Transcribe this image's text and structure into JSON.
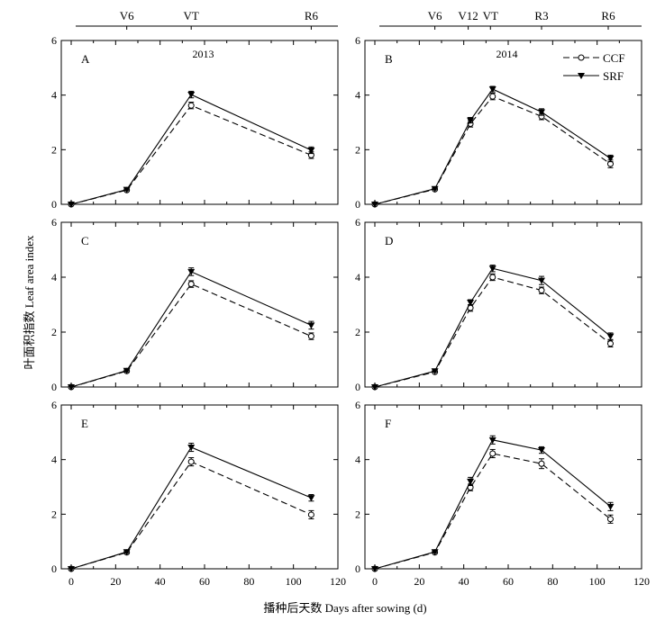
{
  "figure": {
    "ylabel": "叶面积指数 Leaf area index",
    "xlabel": "播种后天数 Days after sowing (d)"
  },
  "legend": [
    {
      "name": "CCF",
      "marker": "open-circle",
      "line": "dashed"
    },
    {
      "name": "SRF",
      "marker": "filled-triangle-down",
      "line": "solid"
    }
  ],
  "stages": {
    "left": [
      {
        "label": "V6",
        "day": 25
      },
      {
        "label": "VT",
        "day": 54
      },
      {
        "label": "R6",
        "day": 108
      }
    ],
    "right": [
      {
        "label": "V6",
        "day": 27
      },
      {
        "label": "V12",
        "day": 42
      },
      {
        "label": "VT",
        "day": 52
      },
      {
        "label": "R3",
        "day": 75
      },
      {
        "label": "R6",
        "day": 105
      }
    ]
  },
  "chart_data": [
    {
      "panel": "A",
      "type": "line",
      "year": "2013",
      "xlim": [
        0,
        120
      ],
      "ylim": [
        0,
        6
      ],
      "xticks": [
        "0",
        "20",
        "40",
        "60",
        "80",
        "100",
        "120"
      ],
      "yticks": [
        "0",
        "2",
        "4",
        "6"
      ],
      "x": [
        0,
        25,
        54,
        108
      ],
      "series": [
        {
          "name": "CCF",
          "values": [
            0,
            0.52,
            3.62,
            1.8
          ],
          "err": [
            0,
            0.04,
            0.12,
            0.12
          ]
        },
        {
          "name": "SRF",
          "values": [
            0,
            0.54,
            4.02,
            1.98
          ],
          "err": [
            0,
            0.04,
            0.12,
            0.12
          ]
        }
      ]
    },
    {
      "panel": "B",
      "type": "line",
      "year": "2014",
      "xlim": [
        0,
        120
      ],
      "ylim": [
        0,
        6
      ],
      "xticks": [
        "0",
        "20",
        "40",
        "60",
        "80",
        "100",
        "120"
      ],
      "yticks": [
        "0",
        "2",
        "4",
        "6"
      ],
      "x": [
        0,
        27,
        43,
        53,
        75,
        106
      ],
      "series": [
        {
          "name": "CCF",
          "values": [
            0,
            0.55,
            2.95,
            3.95,
            3.22,
            1.48
          ],
          "err": [
            0,
            0.04,
            0.12,
            0.12,
            0.12,
            0.14
          ]
        },
        {
          "name": "SRF",
          "values": [
            0,
            0.57,
            3.08,
            4.22,
            3.38,
            1.68
          ],
          "err": [
            0,
            0.04,
            0.1,
            0.1,
            0.12,
            0.12
          ]
        }
      ]
    },
    {
      "panel": "C",
      "type": "line",
      "year": "",
      "xlim": [
        0,
        120
      ],
      "ylim": [
        0,
        6
      ],
      "xticks": [
        "0",
        "20",
        "40",
        "60",
        "80",
        "100",
        "120"
      ],
      "yticks": [
        "0",
        "2",
        "4",
        "6"
      ],
      "x": [
        0,
        25,
        54,
        108
      ],
      "series": [
        {
          "name": "CCF",
          "values": [
            0,
            0.58,
            3.75,
            1.85
          ],
          "err": [
            0,
            0.05,
            0.12,
            0.12
          ]
        },
        {
          "name": "SRF",
          "values": [
            0,
            0.6,
            4.2,
            2.25
          ],
          "err": [
            0,
            0.05,
            0.14,
            0.14
          ]
        }
      ]
    },
    {
      "panel": "D",
      "type": "line",
      "year": "",
      "xlim": [
        0,
        120
      ],
      "ylim": [
        0,
        6
      ],
      "xticks": [
        "0",
        "20",
        "40",
        "60",
        "80",
        "100",
        "120"
      ],
      "yticks": [
        "0",
        "2",
        "4",
        "6"
      ],
      "x": [
        0,
        27,
        43,
        53,
        75,
        106
      ],
      "series": [
        {
          "name": "CCF",
          "values": [
            0,
            0.55,
            2.88,
            4.0,
            3.52,
            1.58
          ],
          "err": [
            0,
            0.04,
            0.12,
            0.12,
            0.12,
            0.12
          ]
        },
        {
          "name": "SRF",
          "values": [
            0,
            0.58,
            3.08,
            4.32,
            3.88,
            1.85
          ],
          "err": [
            0,
            0.04,
            0.1,
            0.12,
            0.15,
            0.12
          ]
        }
      ]
    },
    {
      "panel": "E",
      "type": "line",
      "year": "",
      "xlim": [
        0,
        120
      ],
      "ylim": [
        0,
        6
      ],
      "xticks": [
        "0",
        "20",
        "40",
        "60",
        "80",
        "100",
        "120"
      ],
      "yticks": [
        "0",
        "2",
        "4",
        "6"
      ],
      "x": [
        0,
        25,
        54,
        108
      ],
      "series": [
        {
          "name": "CCF",
          "values": [
            0,
            0.6,
            3.92,
            1.98
          ],
          "err": [
            0,
            0.05,
            0.15,
            0.15
          ]
        },
        {
          "name": "SRF",
          "values": [
            0,
            0.62,
            4.45,
            2.6
          ],
          "err": [
            0,
            0.05,
            0.15,
            0.12
          ]
        }
      ]
    },
    {
      "panel": "F",
      "type": "line",
      "year": "",
      "xlim": [
        0,
        120
      ],
      "ylim": [
        0,
        6
      ],
      "xticks": [
        "0",
        "20",
        "40",
        "60",
        "80",
        "100",
        "120"
      ],
      "yticks": [
        "0",
        "2",
        "4",
        "6"
      ],
      "x": [
        0,
        27,
        43,
        53,
        75,
        106
      ],
      "series": [
        {
          "name": "CCF",
          "values": [
            0,
            0.6,
            2.98,
            4.22,
            3.85,
            1.82
          ],
          "err": [
            0,
            0.04,
            0.12,
            0.15,
            0.18,
            0.15
          ]
        },
        {
          "name": "SRF",
          "values": [
            0,
            0.62,
            3.2,
            4.72,
            4.35,
            2.28
          ],
          "err": [
            0,
            0.04,
            0.15,
            0.15,
            0.12,
            0.15
          ]
        }
      ]
    }
  ]
}
